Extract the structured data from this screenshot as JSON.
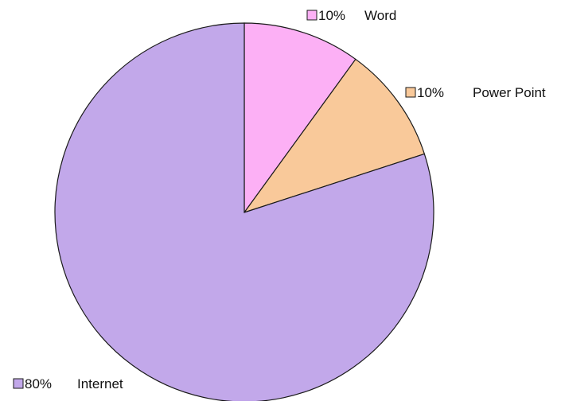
{
  "chart_data": {
    "type": "pie",
    "title": "",
    "labels": [
      "Word",
      "Power Point",
      "Internet"
    ],
    "values": [
      10,
      10,
      80
    ],
    "percent_labels": [
      "10%",
      "10%",
      "80%"
    ],
    "colors": [
      "#fcb0f5",
      "#f9c99a",
      "#c2a8ea"
    ],
    "start_angle_deg": 0,
    "direction": "clockwise",
    "legend": "data labels beside slices"
  }
}
